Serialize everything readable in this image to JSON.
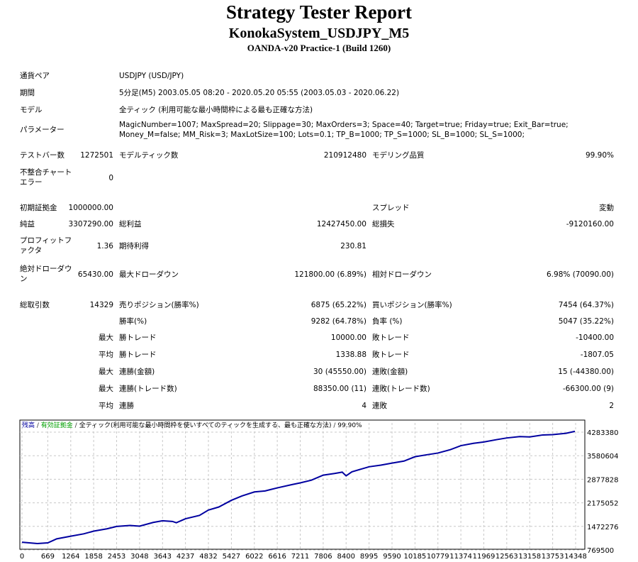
{
  "header": {
    "title": "Strategy Tester Report",
    "subtitle": "KonokaSystem_USDJPY_M5",
    "server": "OANDA-v20 Practice-1 (Build 1260)"
  },
  "info": [
    {
      "label": "通貨ペア",
      "value": "USDJPY (USD/JPY)"
    },
    {
      "label": "期間",
      "value": "5分足(M5) 2003.05.05 08:20 - 2020.05.20 05:55 (2003.05.03 - 2020.06.22)"
    },
    {
      "label": "モデル",
      "value": "全ティック (利用可能な最小時間枠による最も正確な方法)"
    },
    {
      "label": "パラメーター",
      "value": "MagicNumber=1007; MaxSpread=20; Slippage=30; MaxOrders=3; Space=40; Target=true; Friday=true; Exit_Bar=true; Money_M=false; MM_Risk=3; MaxLotSize=100; Lots=0.1; TP_B=1000; TP_S=1000; SL_B=1000; SL_S=1000;"
    }
  ],
  "stats": [
    [
      "テストバー数",
      "1272501",
      "モデルティック数",
      "210912480",
      "モデリング品質",
      "99.90%"
    ],
    [
      "不整合チャートエラー",
      "0",
      "",
      "",
      "",
      ""
    ],
    [
      "初期証拠金",
      "1000000.00",
      "",
      "",
      "スプレッド",
      "変動"
    ],
    [
      "純益",
      "3307290.00",
      "総利益",
      "12427450.00",
      "総損失",
      "-9120160.00"
    ],
    [
      "プロフィットファクタ",
      "1.36",
      "期待利得",
      "230.81",
      "",
      ""
    ],
    [
      "絶対ドローダウン",
      "65430.00",
      "最大ドローダウン",
      "121800.00 (6.89%)",
      "相対ドローダウン",
      "6.98% (70090.00)"
    ],
    [
      "総取引数",
      "14329",
      "売りポジション(勝率%)",
      "6875 (65.22%)",
      "買いポジション(勝率%)",
      "7454 (64.37%)"
    ],
    [
      "",
      "",
      "勝率(%)",
      "9282 (64.78%)",
      "負率 (%)",
      "5047 (35.22%)"
    ],
    [
      "",
      "最大",
      "勝トレード",
      "10000.00",
      "敗トレード",
      "-10400.00"
    ],
    [
      "",
      "平均",
      "勝トレード",
      "1338.88",
      "敗トレード",
      "-1807.05"
    ],
    [
      "",
      "最大",
      "連勝(金額)",
      "30 (45550.00)",
      "連敗(金額)",
      "15 (-44380.00)"
    ],
    [
      "",
      "最大",
      "連勝(トレード数)",
      "88350.00 (11)",
      "連敗(トレード数)",
      "-66300.00 (9)"
    ],
    [
      "",
      "平均",
      "連勝",
      "4",
      "連敗",
      "2"
    ]
  ],
  "chart_data": {
    "type": "line",
    "legend": {
      "balance": "残高",
      "equity": "有効証拠金",
      "model": "全ティック(利用可能な最小時間枠を使いすべてのティックを生成する、最も正確な方法)",
      "quality": "99.90%"
    },
    "colors": {
      "balance": "#0000a0",
      "equity": "#00a000",
      "grid": "#c8c8c8"
    },
    "x_ticks": [
      0,
      669,
      1264,
      1858,
      2453,
      3048,
      3643,
      4237,
      4832,
      5427,
      6022,
      6616,
      7211,
      7806,
      8400,
      8995,
      9590,
      10185,
      10779,
      11374,
      11969,
      12563,
      13158,
      13753,
      14348
    ],
    "y_ticks": [
      4283380,
      3580604,
      2877828,
      2175052,
      1472276,
      769500
    ],
    "xlim": [
      0,
      14500
    ],
    "ylim": [
      769500,
      4400000
    ],
    "series": [
      {
        "name": "残高",
        "x": [
          0,
          400,
          669,
          900,
          1264,
          1600,
          1858,
          2200,
          2453,
          2800,
          3048,
          3400,
          3643,
          3900,
          4000,
          4237,
          4600,
          4832,
          5100,
          5427,
          5700,
          6022,
          6300,
          6616,
          7000,
          7211,
          7500,
          7806,
          8100,
          8300,
          8400,
          8550,
          8995,
          9300,
          9590,
          9900,
          10185,
          10500,
          10779,
          11100,
          11374,
          11700,
          11969,
          12300,
          12563,
          12900,
          13158,
          13500,
          13753,
          14100,
          14329
        ],
        "y": [
          1000000,
          960000,
          980000,
          1100000,
          1180000,
          1250000,
          1330000,
          1400000,
          1470000,
          1500000,
          1480000,
          1590000,
          1640000,
          1620000,
          1580000,
          1700000,
          1800000,
          1960000,
          2050000,
          2250000,
          2380000,
          2500000,
          2530000,
          2620000,
          2720000,
          2770000,
          2850000,
          3000000,
          3050000,
          3090000,
          2980000,
          3100000,
          3250000,
          3300000,
          3360000,
          3420000,
          3550000,
          3610000,
          3660000,
          3760000,
          3880000,
          3950000,
          3990000,
          4060000,
          4110000,
          4150000,
          4140000,
          4200000,
          4210000,
          4250000,
          4307290
        ]
      }
    ]
  }
}
